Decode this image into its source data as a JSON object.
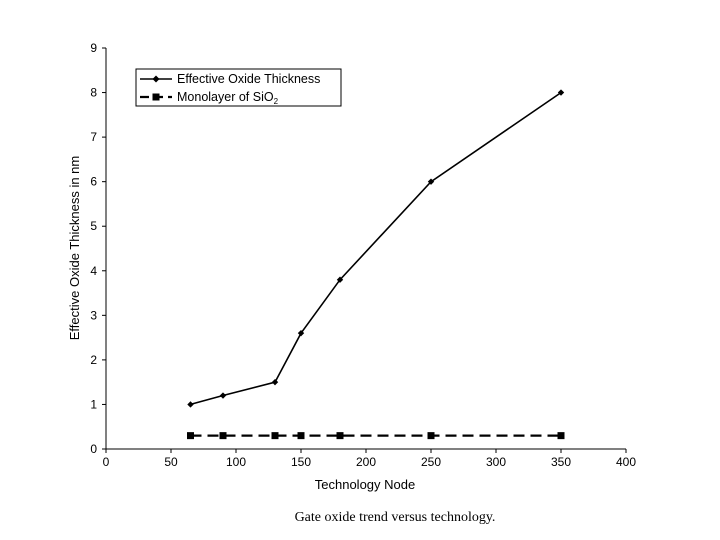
{
  "chart_data": {
    "type": "line",
    "title": "",
    "xlabel": "Technology Node",
    "ylabel": "Effective Oxide Thickness in nm",
    "xlim": [
      0,
      400
    ],
    "ylim": [
      0,
      9
    ],
    "xticks": [
      0,
      50,
      100,
      150,
      200,
      250,
      300,
      350,
      400
    ],
    "yticks": [
      0,
      1,
      2,
      3,
      4,
      5,
      6,
      7,
      8,
      9
    ],
    "grid": false,
    "legend_position": "top-left",
    "series": [
      {
        "name": "Effective Oxide Thickness",
        "style": "solid",
        "marker": "diamond",
        "x": [
          65,
          90,
          130,
          150,
          180,
          250,
          350
        ],
        "y": [
          1.0,
          1.2,
          1.5,
          2.6,
          3.8,
          6.0,
          8.0
        ]
      },
      {
        "name_main": "Monolayer of SiO",
        "name_sub": "2",
        "style": "dashed",
        "marker": "square",
        "x": [
          65,
          90,
          130,
          150,
          180,
          250,
          350
        ],
        "y": [
          0.3,
          0.3,
          0.3,
          0.3,
          0.3,
          0.3,
          0.3
        ]
      }
    ],
    "caption": "Gate oxide trend versus technology."
  }
}
